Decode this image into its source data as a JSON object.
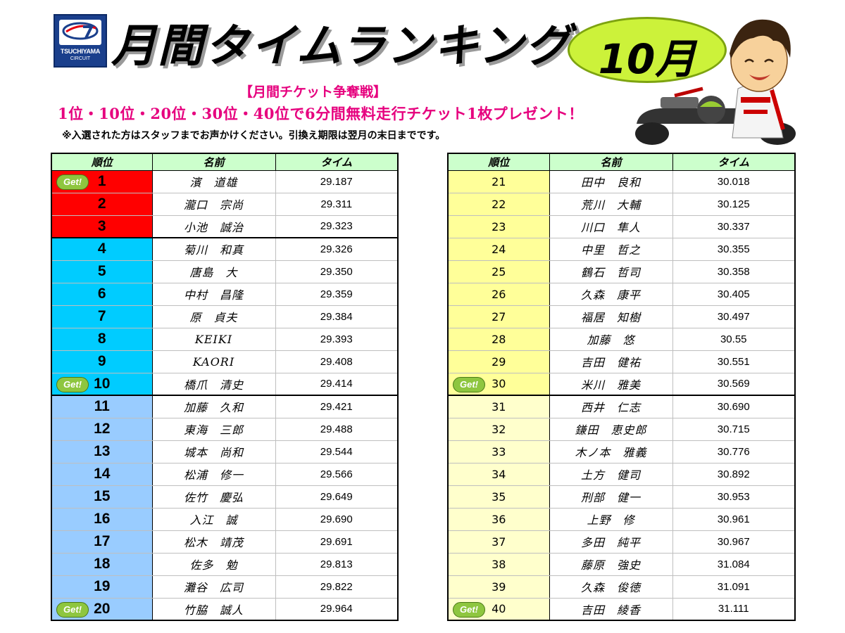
{
  "header": {
    "logo_text_1": "TSUCHIYAMA",
    "logo_text_2": "CIRCUIT",
    "title": "月間タイムランキング",
    "month": "10月"
  },
  "campaign": {
    "title": "【月間チケット争奪戦】",
    "line": "1位・10位・20位・30位・40位で6分間無料走行チケット1枚プレゼント！",
    "note": "※入選された方はスタッフまでお声かけください。引換え期限は翌月の末日までです。"
  },
  "table": {
    "col_rank": "順位",
    "col_name": "名前",
    "col_time": "タイム",
    "badge_label": "Get!"
  },
  "colors": {
    "red": "#ff0000",
    "cyan": "#00ccff",
    "blue": "#99ccff",
    "yellow": "#ffff99",
    "cream": "#ffffcc",
    "header_green": "#ccffcc",
    "badge_green": "#8ec63f",
    "campaign_pink": "#e6007e",
    "bubble_lime": "#ccf23a"
  },
  "rankings_left": [
    {
      "rank": "1",
      "name": "濱　道雄",
      "time": "29.187",
      "tier": "red",
      "badge": true
    },
    {
      "rank": "2",
      "name": "瀧口　宗尚",
      "time": "29.311",
      "tier": "red",
      "badge": false
    },
    {
      "rank": "3",
      "name": "小池　誠治",
      "time": "29.323",
      "tier": "red",
      "badge": false
    },
    {
      "rank": "4",
      "name": "菊川　和真",
      "time": "29.326",
      "tier": "cyan",
      "badge": false
    },
    {
      "rank": "5",
      "name": "唐島　大",
      "time": "29.350",
      "tier": "cyan",
      "badge": false
    },
    {
      "rank": "6",
      "name": "中村　昌隆",
      "time": "29.359",
      "tier": "cyan",
      "badge": false
    },
    {
      "rank": "7",
      "name": "原　貞夫",
      "time": "29.384",
      "tier": "cyan",
      "badge": false
    },
    {
      "rank": "8",
      "name": "KEIKI",
      "time": "29.393",
      "tier": "cyan",
      "badge": false
    },
    {
      "rank": "9",
      "name": "KAORI",
      "time": "29.408",
      "tier": "cyan",
      "badge": false
    },
    {
      "rank": "10",
      "name": "橋爪　清史",
      "time": "29.414",
      "tier": "cyan",
      "badge": true
    },
    {
      "rank": "11",
      "name": "加藤　久和",
      "time": "29.421",
      "tier": "blue",
      "badge": false
    },
    {
      "rank": "12",
      "name": "東海　三郎",
      "time": "29.488",
      "tier": "blue",
      "badge": false
    },
    {
      "rank": "13",
      "name": "城本　尚和",
      "time": "29.544",
      "tier": "blue",
      "badge": false
    },
    {
      "rank": "14",
      "name": "松浦　修一",
      "time": "29.566",
      "tier": "blue",
      "badge": false
    },
    {
      "rank": "15",
      "name": "佐竹　慶弘",
      "time": "29.649",
      "tier": "blue",
      "badge": false
    },
    {
      "rank": "16",
      "name": "入江　誠",
      "time": "29.690",
      "tier": "blue",
      "badge": false
    },
    {
      "rank": "17",
      "name": "松木　靖茂",
      "time": "29.691",
      "tier": "blue",
      "badge": false
    },
    {
      "rank": "18",
      "name": "佐多　勉",
      "time": "29.813",
      "tier": "blue",
      "badge": false
    },
    {
      "rank": "19",
      "name": "灘谷　広司",
      "time": "29.822",
      "tier": "blue",
      "badge": false
    },
    {
      "rank": "20",
      "name": "竹脇　誠人",
      "time": "29.964",
      "tier": "blue",
      "badge": true
    }
  ],
  "rankings_right": [
    {
      "rank": "21",
      "name": "田中　良和",
      "time": "30.018",
      "tier": "yellow",
      "badge": false
    },
    {
      "rank": "22",
      "name": "荒川　大輔",
      "time": "30.125",
      "tier": "yellow",
      "badge": false
    },
    {
      "rank": "23",
      "name": "川口　隼人",
      "time": "30.337",
      "tier": "yellow",
      "badge": false
    },
    {
      "rank": "24",
      "name": "中里　哲之",
      "time": "30.355",
      "tier": "yellow",
      "badge": false
    },
    {
      "rank": "25",
      "name": "鶴石　哲司",
      "time": "30.358",
      "tier": "yellow",
      "badge": false
    },
    {
      "rank": "26",
      "name": "久森　康平",
      "time": "30.405",
      "tier": "yellow",
      "badge": false
    },
    {
      "rank": "27",
      "name": "福居　知樹",
      "time": "30.497",
      "tier": "yellow",
      "badge": false
    },
    {
      "rank": "28",
      "name": "加藤　悠",
      "time": "30.55",
      "tier": "yellow",
      "badge": false
    },
    {
      "rank": "29",
      "name": "吉田　健祐",
      "time": "30.551",
      "tier": "yellow",
      "badge": false
    },
    {
      "rank": "30",
      "name": "米川　雅美",
      "time": "30.569",
      "tier": "yellow",
      "badge": true
    },
    {
      "rank": "31",
      "name": "西井　仁志",
      "time": "30.690",
      "tier": "cream",
      "badge": false
    },
    {
      "rank": "32",
      "name": "鎌田　恵史郎",
      "time": "30.715",
      "tier": "cream",
      "badge": false
    },
    {
      "rank": "33",
      "name": "木ノ本　雅義",
      "time": "30.776",
      "tier": "cream",
      "badge": false
    },
    {
      "rank": "34",
      "name": "土方　健司",
      "time": "30.892",
      "tier": "cream",
      "badge": false
    },
    {
      "rank": "35",
      "name": "刑部　健一",
      "time": "30.953",
      "tier": "cream",
      "badge": false
    },
    {
      "rank": "36",
      "name": "上野　修",
      "time": "30.961",
      "tier": "cream",
      "badge": false
    },
    {
      "rank": "37",
      "name": "多田　純平",
      "time": "30.967",
      "tier": "cream",
      "badge": false
    },
    {
      "rank": "38",
      "name": "藤原　強史",
      "time": "31.084",
      "tier": "cream",
      "badge": false
    },
    {
      "rank": "39",
      "name": "久森　俊徳",
      "time": "31.091",
      "tier": "cream",
      "badge": false
    },
    {
      "rank": "40",
      "name": "吉田　綾香",
      "time": "31.111",
      "tier": "cream",
      "badge": true
    }
  ],
  "icons": {
    "logo": "g7-logo-icon",
    "mascot": "kart-driver-mascot-icon",
    "badge": "get-badge-icon"
  }
}
